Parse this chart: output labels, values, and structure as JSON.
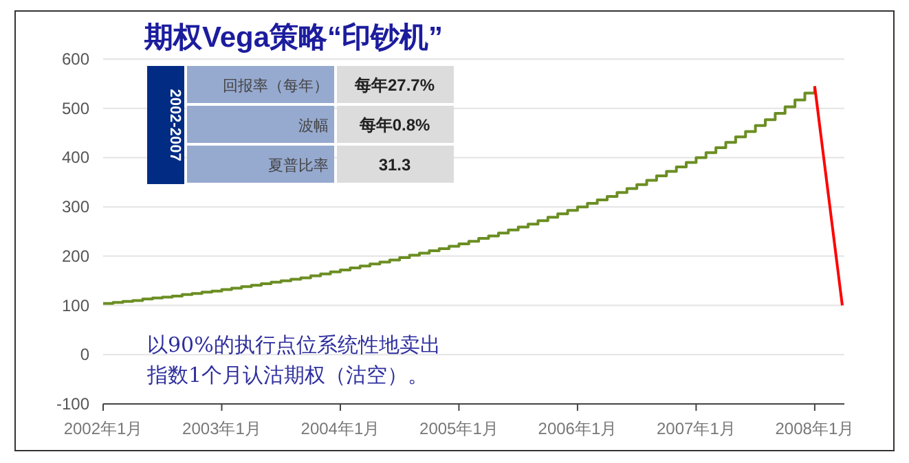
{
  "chart_data": {
    "type": "step",
    "title": "期权Vega策略“印钞机”",
    "annotations": [
      "2002-2007",
      "回报率（每年）",
      "每年27.7%",
      "波幅",
      "每年0.8%",
      "夏普比率",
      "31.3",
      "以90%的执行点位系统性地卖出指数1个月认沽期权（沽空）。"
    ],
    "series": [
      {
        "color": "#6b8e23",
        "x": [
          "2002-01",
          "2002-02",
          "2002-03",
          "2002-04",
          "2002-05",
          "2002-06",
          "2002-07",
          "2002-08",
          "2002-09",
          "2002-10",
          "2002-11",
          "2002-12",
          "2003-01",
          "2003-02",
          "2003-03",
          "2003-04",
          "2003-05",
          "2003-06",
          "2003-07",
          "2003-08",
          "2003-09",
          "2003-10",
          "2003-11",
          "2003-12",
          "2004-01",
          "2004-02",
          "2004-03",
          "2004-04",
          "2004-05",
          "2004-06",
          "2004-07",
          "2004-08",
          "2004-09",
          "2004-10",
          "2004-11",
          "2004-12",
          "2005-01",
          "2005-02",
          "2005-03",
          "2005-04",
          "2005-05",
          "2005-06",
          "2005-07",
          "2005-08",
          "2005-09",
          "2005-10",
          "2005-11",
          "2005-12",
          "2006-01",
          "2006-02",
          "2006-03",
          "2006-04",
          "2006-05",
          "2006-06",
          "2006-07",
          "2006-08",
          "2006-09",
          "2006-10",
          "2006-11",
          "2006-12",
          "2007-01",
          "2007-02",
          "2007-03",
          "2007-04",
          "2007-05",
          "2007-06",
          "2007-07",
          "2007-08",
          "2007-09",
          "2007-10",
          "2007-11",
          "2007-12",
          "2008-01"
        ],
        "values": [
          104,
          106,
          108,
          110,
          113,
          115,
          117,
          119,
          122,
          124,
          127,
          129,
          132,
          135,
          138,
          141,
          144,
          147,
          150,
          153,
          156,
          160,
          164,
          168,
          172,
          176,
          180,
          184,
          188,
          192,
          197,
          202,
          206,
          211,
          215,
          220,
          225,
          230,
          236,
          241,
          247,
          253,
          259,
          265,
          272,
          279,
          286,
          293,
          300,
          307,
          314,
          321,
          329,
          337,
          345,
          354,
          363,
          372,
          381,
          390,
          400,
          410,
          420,
          431,
          442,
          453,
          465,
          477,
          490,
          503,
          517,
          531,
          545
        ]
      },
      {
        "type": "line",
        "color": "#ff0000",
        "x": [
          "2008-01",
          "2008-03-25"
        ],
        "values": [
          545,
          100
        ]
      }
    ],
    "xlim": [
      "2002-01-01",
      "2008-04-01"
    ],
    "xticks": [
      {
        "value": "2002-01",
        "label": "2002年1月"
      },
      {
        "value": "2003-01",
        "label": "2003年1月"
      },
      {
        "value": "2004-01",
        "label": "2004年1月"
      },
      {
        "value": "2005-01",
        "label": "2005年1月"
      },
      {
        "value": "2006-01",
        "label": "2006年1月"
      },
      {
        "value": "2007-01",
        "label": "2007年1月"
      },
      {
        "value": "2008-01",
        "label": "2008年1月"
      }
    ],
    "ylim": [
      -100,
      600
    ],
    "yticks": [
      -100,
      0,
      100,
      200,
      300,
      400,
      500,
      600
    ],
    "grid": "y"
  }
}
